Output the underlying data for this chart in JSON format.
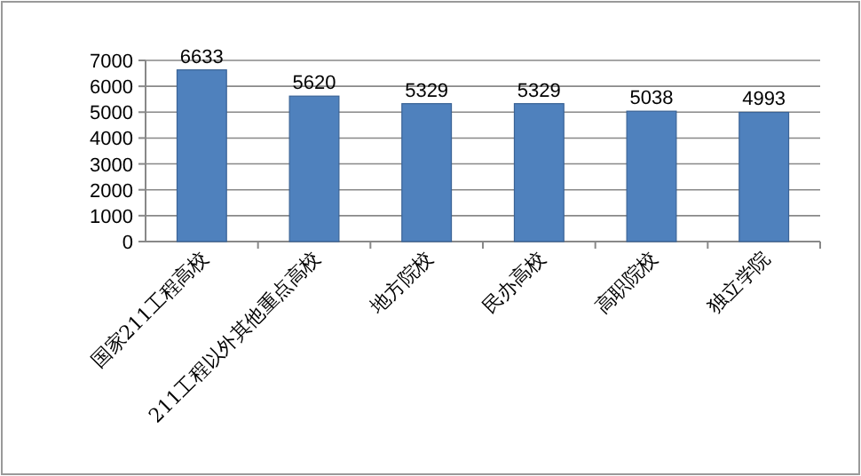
{
  "chart_data": {
    "type": "bar",
    "categories": [
      "国家211工程高校",
      "211工程以外其他重点高校",
      "地方院校",
      "民办高校",
      "高职院校",
      "独立学院"
    ],
    "values": [
      6633,
      5620,
      5329,
      5329,
      5038,
      4993
    ],
    "color": "#4f81bd",
    "ylim": [
      0,
      7000
    ],
    "yticks": [
      0,
      1000,
      2000,
      3000,
      4000,
      5000,
      6000,
      7000
    ],
    "grid": "y",
    "data_labels": true
  }
}
